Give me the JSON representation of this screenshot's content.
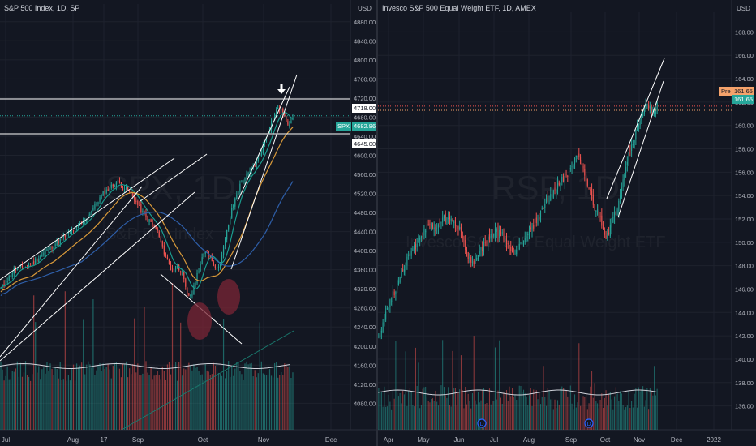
{
  "colors": {
    "background": "#131722",
    "grid": "#1e222d",
    "up": "#26a69a",
    "down": "#ef5350",
    "text": "#b2b5be",
    "line_white": "#ffffff",
    "ma_fast": "#1a9c8f",
    "ma_mid": "#d99a3a",
    "ma_slow": "#2e5ea8",
    "circle": "#7b2636",
    "last_price_bg": "#26a69a",
    "pre_bg": "#f4a26b",
    "pre_text": "#131722"
  },
  "icons": [
    "down-arrow-icon",
    "dividend-icon"
  ],
  "chart_data": [
    {
      "type": "candlestick",
      "title": "S&P 500 Index, 1D, SP",
      "watermark": "SPX, 1D",
      "watermark_sub": "S&P 500 Index",
      "currency": "USD",
      "symbol_badge": "SPX",
      "last_price": "4682.86",
      "ylim": [
        4050,
        4900
      ],
      "y_ticks": [
        "4880.00",
        "4840.00",
        "4800.00",
        "4760.00",
        "4720.00",
        "4680.00",
        "4640.00",
        "4600.00",
        "4560.00",
        "4520.00",
        "4480.00",
        "4440.00",
        "4400.00",
        "4360.00",
        "4320.00",
        "4280.00",
        "4240.00",
        "4200.00",
        "4160.00",
        "4120.00",
        "4080.00"
      ],
      "x_ticks": [
        "Jul",
        "Aug",
        "17",
        "Sep",
        "Oct",
        "Nov",
        "Dec"
      ],
      "price_lines": [
        {
          "label": "4718.00",
          "value": 4718
        },
        {
          "label": "4645.00",
          "value": 4645
        }
      ],
      "anchor_points": [
        [
          0,
          4320
        ],
        [
          8,
          4360
        ],
        [
          18,
          4370
        ],
        [
          26,
          4395
        ],
        [
          35,
          4420
        ],
        [
          43,
          4440
        ],
        [
          50,
          4460
        ],
        [
          56,
          4490
        ],
        [
          62,
          4520
        ],
        [
          67,
          4535
        ],
        [
          71,
          4545
        ],
        [
          75,
          4532
        ],
        [
          80,
          4515
        ],
        [
          84,
          4490
        ],
        [
          88,
          4470
        ],
        [
          92,
          4455
        ],
        [
          95,
          4440
        ],
        [
          98,
          4405
        ],
        [
          101,
          4380
        ],
        [
          104,
          4357
        ],
        [
          107,
          4370
        ],
        [
          110,
          4352
        ],
        [
          113,
          4305
        ],
        [
          116,
          4310
        ],
        [
          119,
          4350
        ],
        [
          122,
          4385
        ],
        [
          125,
          4400
        ],
        [
          128,
          4380
        ],
        [
          131,
          4360
        ],
        [
          134,
          4390
        ],
        [
          137,
          4440
        ],
        [
          140,
          4485
        ],
        [
          143,
          4520
        ],
        [
          146,
          4545
        ],
        [
          150,
          4560
        ],
        [
          154,
          4580
        ],
        [
          158,
          4610
        ],
        [
          162,
          4650
        ],
        [
          165,
          4680
        ],
        [
          168,
          4700
        ],
        [
          171,
          4690
        ],
        [
          174,
          4660
        ],
        [
          177,
          4682.86
        ]
      ]
    },
    {
      "type": "candlestick",
      "title": "Invesco S&P 500 Equal Weight ETF, 1D, AMEX",
      "watermark": "RSP, 1D",
      "watermark_sub": "Invesco S&P 500 Equal Weight ETF",
      "currency": "USD",
      "pre_label": "Pre",
      "pre_price": "161.65",
      "last_price": "161.65",
      "ylim": [
        135,
        169
      ],
      "y_ticks": [
        "168.00",
        "166.00",
        "164.00",
        "162.00",
        "160.00",
        "158.00",
        "156.00",
        "154.00",
        "152.00",
        "150.00",
        "148.00",
        "146.00",
        "144.00",
        "142.00",
        "140.00",
        "138.00",
        "136.00"
      ],
      "x_ticks": [
        "Apr",
        "May",
        "Jun",
        "Jul",
        "Aug",
        "Sep",
        "Oct",
        "Nov",
        "Dec",
        "2022"
      ],
      "dividend_marks": [
        "D",
        "D"
      ],
      "anchor_points": [
        [
          0,
          142.0
        ],
        [
          4,
          143.5
        ],
        [
          8,
          145.0
        ],
        [
          12,
          146.0
        ],
        [
          16,
          147.5
        ],
        [
          22,
          149.0
        ],
        [
          28,
          150.0
        ],
        [
          34,
          151.5
        ],
        [
          40,
          151.0
        ],
        [
          46,
          152.0
        ],
        [
          52,
          151.8
        ],
        [
          58,
          151.0
        ],
        [
          62,
          149.0
        ],
        [
          66,
          148.0
        ],
        [
          70,
          149.0
        ],
        [
          76,
          150.0
        ],
        [
          82,
          151.0
        ],
        [
          88,
          150.5
        ],
        [
          94,
          149.0
        ],
        [
          100,
          150.0
        ],
        [
          106,
          151.0
        ],
        [
          112,
          152.0
        ],
        [
          118,
          153.5
        ],
        [
          124,
          154.5
        ],
        [
          130,
          155.5
        ],
        [
          136,
          156.5
        ],
        [
          140,
          157.3
        ],
        [
          144,
          156.0
        ],
        [
          148,
          154.5
        ],
        [
          152,
          153.0
        ],
        [
          156,
          152.0
        ],
        [
          160,
          150.5
        ],
        [
          164,
          151.5
        ],
        [
          168,
          153.0
        ],
        [
          172,
          155.5
        ],
        [
          176,
          157.5
        ],
        [
          180,
          159.0
        ],
        [
          184,
          160.5
        ],
        [
          188,
          161.6
        ],
        [
          192,
          161.2
        ],
        [
          196,
          161.65
        ]
      ]
    }
  ]
}
